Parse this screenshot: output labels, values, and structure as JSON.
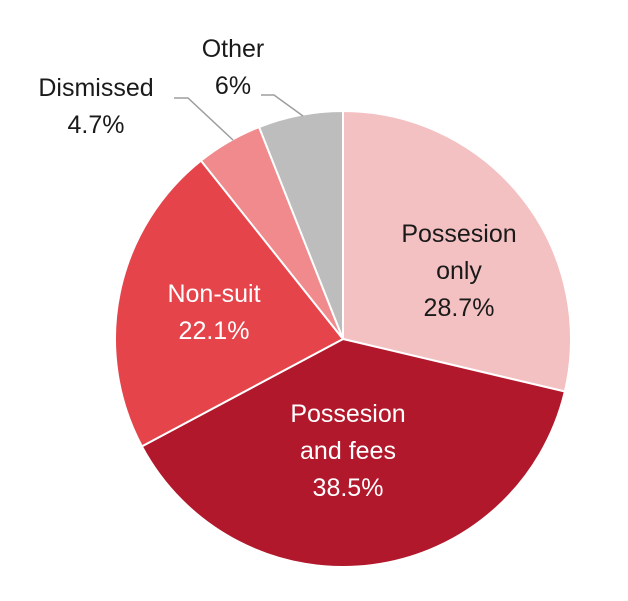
{
  "chart_data": {
    "type": "pie",
    "slices": [
      {
        "name": "Possesion only",
        "label_lines": [
          "Possesion",
          "only",
          "28.7%"
        ],
        "value": 28.7,
        "color": "#f4c1c3",
        "text": "dark"
      },
      {
        "name": "Possesion and fees",
        "label_lines": [
          "Possesion",
          "and fees",
          "38.5%"
        ],
        "value": 38.5,
        "color": "#b2182b",
        "text": "light"
      },
      {
        "name": "Non-suit",
        "label_lines": [
          "Non-suit",
          "22.1%"
        ],
        "value": 22.1,
        "color": "#e5444b",
        "text": "light"
      },
      {
        "name": "Dismissed",
        "label_lines": [
          "Dismissed",
          "4.7%"
        ],
        "value": 4.7,
        "color": "#f08a8d",
        "text": "dark"
      },
      {
        "name": "Other",
        "label_lines": [
          "Other",
          "6%"
        ],
        "value": 6.0,
        "color": "#bdbdbd",
        "text": "dark"
      }
    ],
    "start": "12 o'clock",
    "direction": "clockwise"
  }
}
